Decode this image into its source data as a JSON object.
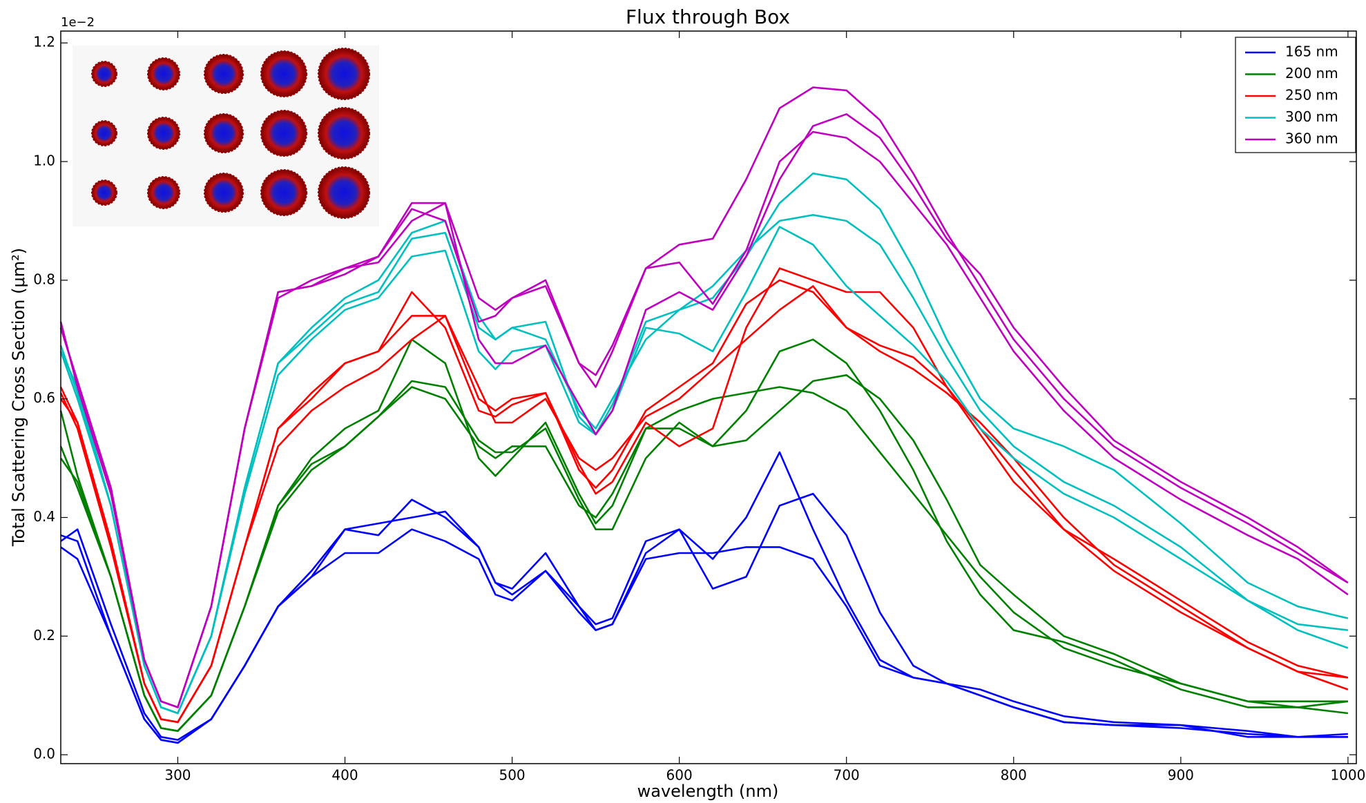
{
  "chart_data": {
    "type": "line",
    "title": "Flux through Box",
    "x_label": "wavelength (nm)",
    "y_label": "Total Scattering Cross Section (μm²)",
    "y_offset_label": "1e−2",
    "xlim": [
      230,
      1005
    ],
    "ylim": [
      -0.015,
      1.22
    ],
    "xticks": [
      300,
      400,
      500,
      600,
      700,
      800,
      900,
      1000
    ],
    "yticks": [
      {
        "value": 0,
        "label": "0.0"
      },
      0.2,
      0.4,
      0.6,
      0.8,
      {
        "value": 1,
        "label": "1.0"
      },
      1.2
    ],
    "legend": "upper right",
    "grid": false,
    "x": [
      230,
      240,
      260,
      280,
      290,
      300,
      320,
      340,
      360,
      380,
      400,
      420,
      440,
      460,
      480,
      490,
      500,
      520,
      540,
      550,
      560,
      580,
      600,
      620,
      640,
      660,
      680,
      700,
      720,
      740,
      760,
      780,
      800,
      830,
      860,
      900,
      940,
      970,
      1000
    ],
    "series": [
      {
        "name": "165 nm",
        "color": "#0000ff",
        "lines": [
          [
            0.37,
            0.36,
            0.2,
            0.06,
            0.025,
            0.02,
            0.06,
            0.15,
            0.25,
            0.3,
            0.38,
            0.39,
            0.4,
            0.41,
            0.35,
            0.29,
            0.28,
            0.34,
            0.25,
            0.22,
            0.23,
            0.36,
            0.38,
            0.33,
            0.4,
            0.51,
            0.38,
            0.26,
            0.16,
            0.13,
            0.12,
            0.1,
            0.08,
            0.055,
            0.05,
            0.045,
            0.035,
            0.03,
            0.03
          ],
          [
            0.36,
            0.38,
            0.22,
            0.07,
            0.03,
            0.025,
            0.06,
            0.15,
            0.25,
            0.31,
            0.38,
            0.37,
            0.43,
            0.4,
            0.35,
            0.29,
            0.27,
            0.31,
            0.24,
            0.21,
            0.22,
            0.34,
            0.38,
            0.28,
            0.3,
            0.42,
            0.44,
            0.37,
            0.24,
            0.15,
            0.12,
            0.11,
            0.09,
            0.065,
            0.055,
            0.05,
            0.04,
            0.03,
            0.03
          ],
          [
            0.35,
            0.33,
            0.2,
            0.06,
            0.025,
            0.02,
            0.06,
            0.15,
            0.25,
            0.3,
            0.34,
            0.34,
            0.38,
            0.36,
            0.33,
            0.27,
            0.26,
            0.31,
            0.25,
            0.21,
            0.22,
            0.33,
            0.34,
            0.34,
            0.35,
            0.35,
            0.33,
            0.25,
            0.15,
            0.13,
            0.12,
            0.1,
            0.08,
            0.055,
            0.05,
            0.05,
            0.03,
            0.03,
            0.035
          ]
        ]
      },
      {
        "name": "200 nm",
        "color": "#008000",
        "lines": [
          [
            0.58,
            0.47,
            0.3,
            0.1,
            0.045,
            0.04,
            0.1,
            0.25,
            0.42,
            0.5,
            0.55,
            0.58,
            0.7,
            0.66,
            0.5,
            0.47,
            0.5,
            0.56,
            0.44,
            0.39,
            0.42,
            0.55,
            0.55,
            0.52,
            0.58,
            0.68,
            0.7,
            0.66,
            0.58,
            0.48,
            0.36,
            0.27,
            0.21,
            0.19,
            0.16,
            0.11,
            0.08,
            0.08,
            0.07
          ],
          [
            0.52,
            0.45,
            0.3,
            0.1,
            0.045,
            0.04,
            0.1,
            0.25,
            0.41,
            0.48,
            0.52,
            0.57,
            0.63,
            0.62,
            0.53,
            0.51,
            0.51,
            0.55,
            0.43,
            0.38,
            0.38,
            0.5,
            0.56,
            0.52,
            0.53,
            0.58,
            0.63,
            0.64,
            0.6,
            0.53,
            0.43,
            0.32,
            0.27,
            0.2,
            0.17,
            0.12,
            0.09,
            0.09,
            0.09
          ],
          [
            0.5,
            0.46,
            0.3,
            0.1,
            0.045,
            0.04,
            0.1,
            0.25,
            0.42,
            0.49,
            0.52,
            0.57,
            0.62,
            0.6,
            0.52,
            0.5,
            0.52,
            0.52,
            0.42,
            0.4,
            0.44,
            0.55,
            0.58,
            0.6,
            0.61,
            0.62,
            0.61,
            0.58,
            0.51,
            0.44,
            0.37,
            0.3,
            0.24,
            0.18,
            0.15,
            0.12,
            0.09,
            0.08,
            0.09
          ]
        ]
      },
      {
        "name": "250 nm",
        "color": "#ff0000",
        "lines": [
          [
            0.61,
            0.55,
            0.35,
            0.12,
            0.06,
            0.055,
            0.15,
            0.35,
            0.55,
            0.61,
            0.66,
            0.68,
            0.78,
            0.72,
            0.58,
            0.57,
            0.59,
            0.61,
            0.49,
            0.44,
            0.46,
            0.56,
            0.52,
            0.55,
            0.72,
            0.82,
            0.8,
            0.78,
            0.78,
            0.72,
            0.62,
            0.54,
            0.46,
            0.38,
            0.31,
            0.24,
            0.18,
            0.14,
            0.13
          ],
          [
            0.62,
            0.56,
            0.36,
            0.12,
            0.06,
            0.055,
            0.15,
            0.35,
            0.55,
            0.6,
            0.66,
            0.68,
            0.74,
            0.74,
            0.6,
            0.58,
            0.6,
            0.61,
            0.48,
            0.45,
            0.48,
            0.58,
            0.62,
            0.66,
            0.76,
            0.8,
            0.78,
            0.72,
            0.69,
            0.67,
            0.62,
            0.55,
            0.48,
            0.38,
            0.33,
            0.26,
            0.19,
            0.15,
            0.13
          ],
          [
            0.6,
            0.56,
            0.36,
            0.12,
            0.06,
            0.055,
            0.15,
            0.35,
            0.52,
            0.58,
            0.62,
            0.65,
            0.7,
            0.74,
            0.62,
            0.56,
            0.56,
            0.6,
            0.5,
            0.48,
            0.5,
            0.57,
            0.6,
            0.65,
            0.7,
            0.75,
            0.79,
            0.72,
            0.68,
            0.65,
            0.61,
            0.56,
            0.5,
            0.4,
            0.32,
            0.25,
            0.18,
            0.14,
            0.11
          ]
        ]
      },
      {
        "name": "300 nm",
        "color": "#00bfbf",
        "lines": [
          [
            0.68,
            0.6,
            0.42,
            0.15,
            0.08,
            0.07,
            0.2,
            0.45,
            0.66,
            0.72,
            0.77,
            0.8,
            0.88,
            0.9,
            0.74,
            0.7,
            0.72,
            0.7,
            0.58,
            0.55,
            0.6,
            0.7,
            0.75,
            0.77,
            0.84,
            0.93,
            0.98,
            0.97,
            0.92,
            0.82,
            0.7,
            0.6,
            0.55,
            0.52,
            0.48,
            0.39,
            0.29,
            0.25,
            0.23
          ],
          [
            0.69,
            0.61,
            0.42,
            0.15,
            0.08,
            0.07,
            0.2,
            0.45,
            0.66,
            0.71,
            0.76,
            0.78,
            0.87,
            0.88,
            0.72,
            0.7,
            0.72,
            0.73,
            0.57,
            0.54,
            0.58,
            0.72,
            0.71,
            0.68,
            0.78,
            0.89,
            0.86,
            0.79,
            0.74,
            0.69,
            0.63,
            0.55,
            0.5,
            0.44,
            0.4,
            0.33,
            0.26,
            0.22,
            0.21
          ],
          [
            0.68,
            0.62,
            0.42,
            0.15,
            0.08,
            0.07,
            0.2,
            0.44,
            0.64,
            0.7,
            0.75,
            0.77,
            0.84,
            0.85,
            0.68,
            0.65,
            0.68,
            0.69,
            0.56,
            0.54,
            0.59,
            0.73,
            0.75,
            0.79,
            0.85,
            0.9,
            0.91,
            0.9,
            0.86,
            0.77,
            0.67,
            0.58,
            0.52,
            0.46,
            0.42,
            0.35,
            0.26,
            0.21,
            0.18
          ]
        ]
      },
      {
        "name": "360 nm",
        "color": "#bf00bf",
        "lines": [
          [
            0.73,
            0.62,
            0.44,
            0.16,
            0.09,
            0.08,
            0.25,
            0.55,
            0.78,
            0.79,
            0.82,
            0.84,
            0.93,
            0.93,
            0.77,
            0.75,
            0.77,
            0.79,
            0.66,
            0.64,
            0.69,
            0.82,
            0.86,
            0.87,
            0.97,
            1.09,
            1.125,
            1.12,
            1.07,
            0.98,
            0.88,
            0.79,
            0.7,
            0.6,
            0.52,
            0.45,
            0.39,
            0.34,
            0.29
          ],
          [
            0.72,
            0.63,
            0.45,
            0.16,
            0.09,
            0.08,
            0.25,
            0.55,
            0.77,
            0.8,
            0.82,
            0.83,
            0.9,
            0.93,
            0.7,
            0.66,
            0.66,
            0.69,
            0.59,
            0.54,
            0.58,
            0.75,
            0.78,
            0.75,
            0.84,
            0.97,
            1.06,
            1.08,
            1.04,
            0.96,
            0.87,
            0.81,
            0.72,
            0.62,
            0.53,
            0.46,
            0.4,
            0.35,
            0.29
          ],
          [
            0.72,
            0.63,
            0.45,
            0.16,
            0.09,
            0.08,
            0.25,
            0.55,
            0.78,
            0.79,
            0.81,
            0.84,
            0.92,
            0.9,
            0.73,
            0.74,
            0.77,
            0.8,
            0.66,
            0.62,
            0.68,
            0.82,
            0.83,
            0.76,
            0.85,
            1.0,
            1.05,
            1.04,
            1.0,
            0.93,
            0.86,
            0.77,
            0.68,
            0.58,
            0.5,
            0.43,
            0.37,
            0.33,
            0.27
          ]
        ]
      }
    ]
  }
}
